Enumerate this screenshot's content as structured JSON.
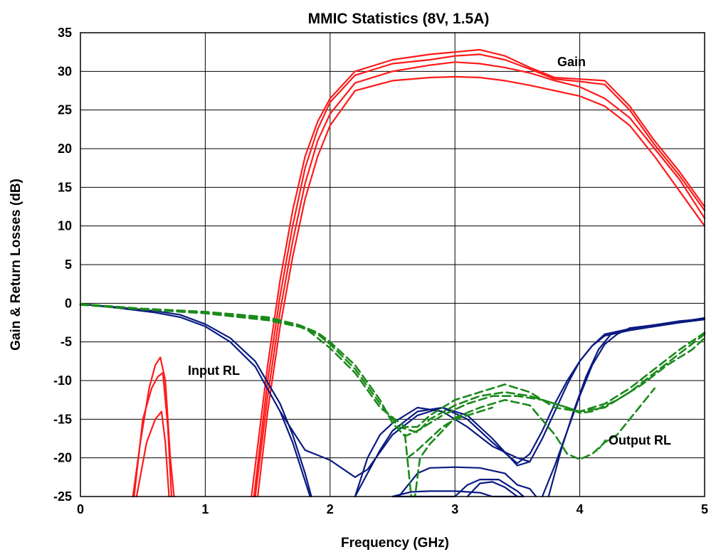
{
  "chart_data": {
    "type": "line",
    "title": "MMIC Statistics (8V, 1.5A)",
    "xlabel": "Frequency (GHz)",
    "ylabel": "Gain & Return Losses (dB)",
    "xlim": [
      0,
      5
    ],
    "ylim": [
      -25,
      35
    ],
    "xticks": [
      "0",
      "1",
      "2",
      "3",
      "4",
      "5"
    ],
    "yticks": [
      "35",
      "30",
      "25",
      "20",
      "15",
      "10",
      "5",
      "0",
      "-5",
      "-10",
      "-15",
      "-20",
      "-25"
    ],
    "grid": true,
    "annotations": [
      "Gain",
      "Input RL",
      "Output RL"
    ],
    "colors": {
      "gain": "#ff1a1a",
      "input_rl": "#0a1a80",
      "output_rl": "#1a8a1a"
    },
    "series": [
      {
        "group": "Gain",
        "color": "#ff1a1a",
        "style": "solid",
        "x": [
          0.42,
          0.48,
          0.55,
          0.6,
          0.64,
          0.68,
          0.72,
          0.75
        ],
        "y": [
          -25,
          -18,
          -11,
          -8,
          -7,
          -10,
          -20,
          -25
        ]
      },
      {
        "group": "Gain",
        "color": "#ff1a1a",
        "style": "solid",
        "x": [
          0.43,
          0.5,
          0.57,
          0.62,
          0.66,
          0.7,
          0.73
        ],
        "y": [
          -25,
          -15,
          -11,
          -9.5,
          -9,
          -16,
          -25
        ]
      },
      {
        "group": "Gain",
        "color": "#ff1a1a",
        "style": "solid",
        "x": [
          0.45,
          0.53,
          0.6,
          0.65,
          0.68,
          0.71
        ],
        "y": [
          -25,
          -18,
          -15,
          -14,
          -18,
          -25
        ]
      },
      {
        "group": "Gain",
        "color": "#ff1a1a",
        "style": "solid",
        "x": [
          1.37,
          1.5,
          1.6,
          1.7,
          1.8,
          1.9,
          2.0,
          2.2,
          2.5,
          2.8,
          3.0,
          3.2,
          3.4,
          3.6,
          3.8,
          4.0,
          4.2,
          4.4,
          4.6,
          4.8,
          5.0
        ],
        "y": [
          -25,
          -8,
          3,
          12,
          19,
          23.5,
          26.5,
          30,
          31.5,
          32.2,
          32.5,
          32.8,
          32,
          30.5,
          29.2,
          29,
          28.8,
          25.5,
          21,
          17,
          12.5
        ]
      },
      {
        "group": "Gain",
        "color": "#ff1a1a",
        "style": "solid",
        "x": [
          1.39,
          1.5,
          1.6,
          1.7,
          1.8,
          1.9,
          2.0,
          2.2,
          2.5,
          2.8,
          3.0,
          3.2,
          3.4,
          3.6,
          3.8,
          4.0,
          4.2,
          4.4,
          4.6,
          4.8,
          5.0
        ],
        "y": [
          -25,
          -10,
          1,
          10,
          17.5,
          22.5,
          26,
          29.5,
          31,
          31.5,
          32,
          32.2,
          31.5,
          30.3,
          29,
          28.7,
          28.3,
          25,
          20.5,
          16.5,
          12
        ]
      },
      {
        "group": "Gain",
        "color": "#ff1a1a",
        "style": "solid",
        "x": [
          1.4,
          1.5,
          1.6,
          1.7,
          1.8,
          1.9,
          2.0,
          2.2,
          2.5,
          2.8,
          3.0,
          3.2,
          3.4,
          3.6,
          3.8,
          4.0,
          4.2,
          4.4,
          4.6,
          4.8,
          5.0
        ],
        "y": [
          -25,
          -12,
          -1,
          8,
          15.5,
          21,
          24.5,
          28.5,
          30,
          30.8,
          31.2,
          31,
          30.5,
          29.8,
          28.8,
          28,
          26.5,
          24,
          20,
          16,
          11
        ]
      },
      {
        "group": "Gain",
        "color": "#ff1a1a",
        "style": "solid",
        "x": [
          1.42,
          1.5,
          1.6,
          1.7,
          1.8,
          1.9,
          2.0,
          2.2,
          2.5,
          2.8,
          3.0,
          3.2,
          3.4,
          3.6,
          3.8,
          4.0,
          4.2,
          4.4,
          4.6,
          4.8,
          5.0
        ],
        "y": [
          -25,
          -14,
          -3,
          6,
          13.5,
          19,
          23,
          27.5,
          28.8,
          29.2,
          29.3,
          29.2,
          28.8,
          28.2,
          27.5,
          26.8,
          25.5,
          23,
          19,
          14.5,
          10
        ]
      },
      {
        "group": "Input RL",
        "color": "#0a1a80",
        "style": "solid",
        "x": [
          0,
          0.3,
          0.6,
          0.8,
          1.0,
          1.2,
          1.4,
          1.6,
          1.7,
          1.8,
          1.85
        ],
        "y": [
          -0.1,
          -0.5,
          -1.0,
          -1.5,
          -2.7,
          -4.5,
          -7.5,
          -13,
          -17,
          -22,
          -25
        ]
      },
      {
        "group": "Input RL",
        "color": "#0a1a80",
        "style": "solid",
        "x": [
          0,
          0.3,
          0.6,
          0.8,
          1.0,
          1.2,
          1.4,
          1.6,
          1.7,
          1.8,
          1.84
        ],
        "y": [
          -0.1,
          -0.6,
          -1.2,
          -1.8,
          -3.0,
          -5.0,
          -8.2,
          -14,
          -18,
          -23,
          -25
        ]
      },
      {
        "group": "Input RL",
        "color": "#0a1a80",
        "style": "solid",
        "x": [
          1.6,
          1.8,
          2.0,
          2.2,
          2.3,
          2.5,
          2.7,
          2.9,
          3.1,
          3.3,
          3.5,
          3.6,
          3.7,
          3.8,
          3.9,
          4.0,
          4.1,
          4.2,
          4.4,
          4.6,
          4.8,
          5.0
        ],
        "y": [
          -14,
          -19,
          -20.3,
          -22.5,
          -21.5,
          -17,
          -14.5,
          -13.5,
          -14.5,
          -17.5,
          -21,
          -20.5,
          -17.5,
          -14,
          -10.5,
          -7.5,
          -5.5,
          -4,
          -3.3,
          -2.8,
          -2.4,
          -2
        ]
      },
      {
        "group": "Input RL",
        "color": "#0a1a80",
        "style": "solid",
        "x": [
          2.2,
          2.3,
          2.4,
          2.5,
          2.7,
          2.9,
          3.1,
          3.3,
          3.5,
          3.6,
          3.7,
          3.8,
          3.9,
          4.0,
          4.1,
          4.2,
          4.4,
          4.6,
          4.8,
          5.0
        ],
        "y": [
          -25,
          -22,
          -19,
          -16.5,
          -14,
          -13.5,
          -15,
          -18,
          -20.7,
          -19.5,
          -16.5,
          -13,
          -10,
          -7.5,
          -5.5,
          -4.2,
          -3.5,
          -3,
          -2.5,
          -2.1
        ]
      },
      {
        "group": "Input RL",
        "color": "#0a1a80",
        "style": "solid",
        "x": [
          2.2,
          2.3,
          2.4,
          2.5,
          2.7,
          2.9,
          3.1,
          3.3,
          3.5,
          3.6
        ],
        "y": [
          -25,
          -20,
          -17,
          -15.5,
          -13.5,
          -14,
          -16,
          -18.5,
          -20,
          -20.5
        ]
      },
      {
        "group": "Input RL",
        "color": "#0a1a80",
        "style": "solid",
        "x": [
          2.55,
          2.7,
          2.8,
          3.0,
          3.2,
          3.4,
          3.5,
          3.6,
          3.65
        ],
        "y": [
          -25,
          -22,
          -21.3,
          -21.2,
          -21.3,
          -22,
          -23.5,
          -24,
          -25
        ]
      },
      {
        "group": "Input RL",
        "color": "#0a1a80",
        "style": "solid",
        "x": [
          2.5,
          2.65,
          2.8,
          3.0,
          3.2,
          3.3,
          3.45,
          3.5,
          3.55
        ],
        "y": [
          -25,
          -24.4,
          -24.3,
          -24.3,
          -24.5,
          -25,
          -25,
          -25,
          -25
        ]
      },
      {
        "group": "Input RL",
        "color": "#0a1a80",
        "style": "solid",
        "x": [
          2.5,
          2.6,
          2.7,
          2.8,
          3.0,
          3.1,
          3.2,
          3.35,
          3.42,
          3.5,
          3.55
        ],
        "y": [
          -25,
          -25,
          -25,
          -25,
          -25,
          -23.5,
          -22.8,
          -22.8,
          -23.5,
          -24.3,
          -25
        ]
      },
      {
        "group": "Input RL",
        "color": "#0a1a80",
        "style": "solid",
        "x": [
          3.1,
          3.2,
          3.3,
          3.4,
          3.5
        ],
        "y": [
          -25,
          -23.3,
          -23.1,
          -23.8,
          -25
        ]
      },
      {
        "group": "Input RL",
        "color": "#0a1a80",
        "style": "solid",
        "x": [
          3.75,
          3.85,
          3.95,
          4.05,
          4.15,
          4.25,
          4.4,
          4.6,
          4.8,
          5.0
        ],
        "y": [
          -25,
          -19,
          -14,
          -9.5,
          -6,
          -4,
          -3.3,
          -2.8,
          -2.4,
          -1.9
        ]
      },
      {
        "group": "Input RL",
        "color": "#0a1a80",
        "style": "solid",
        "x": [
          3.7,
          3.8,
          3.9,
          4.0,
          4.1,
          4.2,
          4.3,
          4.4,
          4.6,
          4.8,
          5.0
        ],
        "y": [
          -25,
          -21,
          -16.5,
          -12,
          -8,
          -5.3,
          -4,
          -3.2,
          -2.8,
          -2.3,
          -2
        ]
      },
      {
        "group": "Output RL",
        "color": "#1a8a1a",
        "style": "dashed",
        "x": [
          0,
          0.5,
          1.0,
          1.5,
          1.75,
          1.9,
          2.0,
          2.2,
          2.4,
          2.5,
          2.6,
          2.7,
          2.9,
          3.1,
          3.3,
          3.5,
          3.7,
          3.9,
          4.0,
          4.1,
          4.3,
          4.5,
          4.7,
          4.9,
          5.0
        ],
        "y": [
          -0.1,
          -0.7,
          -1.1,
          -1.8,
          -2.8,
          -3.8,
          -5,
          -8,
          -12.5,
          -15.5,
          -17.2,
          -16.5,
          -14.5,
          -13,
          -12,
          -12,
          -12.5,
          -13.5,
          -14.2,
          -14,
          -12.5,
          -10.5,
          -8,
          -6,
          -4.5
        ]
      },
      {
        "group": "Output RL",
        "color": "#1a8a1a",
        "style": "dashed",
        "x": [
          0,
          0.5,
          1.0,
          1.5,
          1.75,
          1.9,
          2.0,
          2.2,
          2.4,
          2.55,
          2.7,
          2.8,
          3.0,
          3.2,
          3.4,
          3.6,
          3.8,
          4.0,
          4.2,
          4.4,
          4.6,
          4.8,
          5.0
        ],
        "y": [
          -0.1,
          -0.8,
          -1.2,
          -2,
          -3,
          -4,
          -5.3,
          -8.5,
          -13,
          -16,
          -16.7,
          -15,
          -13.2,
          -12,
          -11.5,
          -12,
          -13,
          -14,
          -13.5,
          -11.5,
          -9,
          -6.5,
          -4
        ]
      },
      {
        "group": "Output RL",
        "color": "#1a8a1a",
        "style": "dashed",
        "x": [
          0,
          0.5,
          1.0,
          1.5,
          1.8,
          2.0,
          2.2,
          2.4,
          2.6,
          2.7,
          2.8,
          3.0,
          3.2,
          3.4,
          3.6,
          3.8,
          4.0,
          4.2,
          4.4,
          4.6,
          4.8,
          5.0
        ],
        "y": [
          -0.2,
          -0.8,
          -1.3,
          -2.2,
          -3.2,
          -5.8,
          -9,
          -13.5,
          -16,
          -16,
          -14.5,
          -12.5,
          -11.5,
          -10.5,
          -11.5,
          -13.5,
          -14,
          -13,
          -11,
          -8.5,
          -6,
          -3.8
        ]
      },
      {
        "group": "Output RL",
        "color": "#1a8a1a",
        "style": "dashed",
        "x": [
          2.6,
          2.65,
          2.68,
          2.72,
          2.8,
          2.9,
          3.0,
          3.2,
          3.4,
          3.6,
          3.8,
          3.9,
          4.0,
          4.1,
          4.2,
          4.3,
          4.45,
          4.6
        ],
        "y": [
          -17,
          -25,
          -25,
          -20,
          -18.2,
          -16.5,
          -14.8,
          -13.5,
          -12.5,
          -13.2,
          -17,
          -19.5,
          -20.2,
          -19.5,
          -18,
          -17,
          -14,
          -11
        ]
      },
      {
        "group": "Output RL",
        "color": "#1a8a1a",
        "style": "dashed",
        "x": [
          2.62,
          2.7,
          2.8,
          2.9,
          3.0,
          3.2,
          3.3
        ],
        "y": [
          -20,
          -19,
          -17.5,
          -16,
          -15,
          -14,
          -13.5
        ]
      }
    ]
  }
}
